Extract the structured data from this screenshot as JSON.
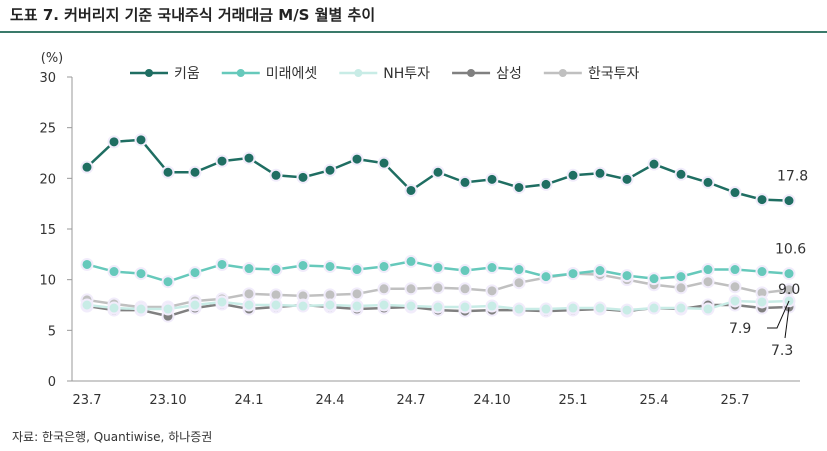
{
  "title": "도표 7. 커버리지 기준 국내주식 거래대금 M/S 월별 추이",
  "source": "자료: 한국은행, Quantiwise, 하나증권",
  "chart_data": {
    "type": "line",
    "ylabel": "(%)",
    "ylim": [
      0,
      30
    ],
    "yticks": [
      0,
      5,
      10,
      15,
      20,
      25,
      30
    ],
    "grid": false,
    "legend": "top",
    "x": [
      "23.7",
      "23.8",
      "23.9",
      "23.10",
      "23.11",
      "23.12",
      "24.1",
      "24.2",
      "24.3",
      "24.4",
      "24.5",
      "24.6",
      "24.7",
      "24.8",
      "24.9",
      "24.10",
      "24.11",
      "24.12",
      "25.1",
      "25.2",
      "25.3",
      "25.4",
      "25.5",
      "25.6",
      "25.7",
      "25.8",
      "25.9"
    ],
    "xticks": [
      "23.7",
      "23.10",
      "24.1",
      "24.4",
      "24.7",
      "24.10",
      "25.1",
      "25.4",
      "25.7"
    ],
    "series": [
      {
        "name": "키움",
        "color": "#1f6e62",
        "values": [
          21.1,
          23.6,
          23.8,
          20.6,
          20.6,
          21.7,
          22.0,
          20.3,
          20.1,
          20.8,
          21.9,
          21.5,
          18.8,
          20.6,
          19.6,
          19.9,
          19.1,
          19.4,
          20.3,
          20.5,
          19.9,
          21.4,
          20.4,
          19.6,
          18.6,
          17.9,
          17.8
        ]
      },
      {
        "name": "미래에셋",
        "color": "#66c9bb",
        "values": [
          11.5,
          10.8,
          10.6,
          9.8,
          10.7,
          11.5,
          11.1,
          11.0,
          11.4,
          11.3,
          11.0,
          11.3,
          11.8,
          11.2,
          10.9,
          11.2,
          11.0,
          10.3,
          10.6,
          10.9,
          10.4,
          10.1,
          10.3,
          11.0,
          11.0,
          10.8,
          10.6
        ]
      },
      {
        "name": "NH투자",
        "color": "#c8ece6",
        "values": [
          7.5,
          7.2,
          7.1,
          7.1,
          7.5,
          7.8,
          7.5,
          7.5,
          7.4,
          7.5,
          7.4,
          7.5,
          7.4,
          7.3,
          7.3,
          7.4,
          7.1,
          7.1,
          7.2,
          7.2,
          7.0,
          7.2,
          7.2,
          7.1,
          7.9,
          7.8,
          7.9
        ]
      },
      {
        "name": "삼성",
        "color": "#808080",
        "values": [
          7.4,
          7.0,
          7.0,
          6.4,
          7.2,
          7.6,
          7.1,
          7.3,
          7.5,
          7.3,
          7.1,
          7.2,
          7.3,
          7.0,
          6.9,
          7.0,
          7.0,
          6.9,
          7.0,
          7.1,
          6.9,
          7.2,
          7.1,
          7.5,
          7.5,
          7.2,
          7.3
        ]
      },
      {
        "name": "한국투자",
        "color": "#c0c0c0",
        "values": [
          8.0,
          7.6,
          7.3,
          7.3,
          7.9,
          8.1,
          8.6,
          8.5,
          8.4,
          8.5,
          8.6,
          9.1,
          9.1,
          9.2,
          9.1,
          8.9,
          9.7,
          10.2,
          10.6,
          10.5,
          10.0,
          9.5,
          9.2,
          9.8,
          9.3,
          8.7,
          9.0
        ]
      }
    ],
    "annotations": [
      "17.8",
      "10.6",
      "9.0",
      "7.9",
      "7.3"
    ]
  }
}
